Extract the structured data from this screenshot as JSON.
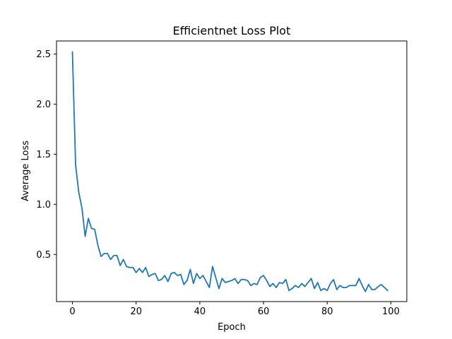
{
  "chart_data": {
    "type": "line",
    "title": "Efficientnet Loss Plot",
    "xlabel": "Epoch",
    "ylabel": "Average Loss",
    "xlim": [
      -5,
      105
    ],
    "ylim": [
      0.03,
      2.63
    ],
    "xticks": [
      0,
      20,
      40,
      60,
      80,
      100
    ],
    "yticks": [
      0.5,
      1.0,
      1.5,
      2.0,
      2.5
    ],
    "ytick_labels": [
      "0.5",
      "1.0",
      "1.5",
      "2.0",
      "2.5"
    ],
    "grid": false,
    "legend": "none",
    "color": "#1f77b4",
    "series": [
      {
        "x": [
          0,
          1,
          2,
          3,
          4,
          5,
          6,
          7,
          8,
          9,
          10,
          11,
          12,
          13,
          14,
          15,
          16,
          17,
          18,
          19,
          20,
          21,
          22,
          23,
          24,
          25,
          26,
          27,
          28,
          29,
          30,
          31,
          32,
          33,
          34,
          35,
          36,
          37,
          38,
          39,
          40,
          41,
          42,
          43,
          44,
          45,
          46,
          47,
          48,
          49,
          50,
          51,
          52,
          53,
          54,
          55,
          56,
          57,
          58,
          59,
          60,
          61,
          62,
          63,
          64,
          65,
          66,
          67,
          68,
          69,
          70,
          71,
          72,
          73,
          74,
          75,
          76,
          77,
          78,
          79,
          80,
          81,
          82,
          83,
          84,
          85,
          86,
          87,
          88,
          89,
          90,
          91,
          92,
          93,
          94,
          95,
          96,
          97,
          98,
          99
        ],
        "y": [
          2.52,
          1.39,
          1.12,
          0.96,
          0.68,
          0.86,
          0.76,
          0.75,
          0.59,
          0.48,
          0.51,
          0.51,
          0.45,
          0.49,
          0.49,
          0.39,
          0.45,
          0.38,
          0.37,
          0.37,
          0.32,
          0.36,
          0.32,
          0.37,
          0.28,
          0.3,
          0.31,
          0.24,
          0.25,
          0.29,
          0.23,
          0.31,
          0.32,
          0.29,
          0.3,
          0.2,
          0.24,
          0.35,
          0.21,
          0.31,
          0.26,
          0.29,
          0.23,
          0.17,
          0.38,
          0.27,
          0.16,
          0.26,
          0.22,
          0.23,
          0.24,
          0.26,
          0.21,
          0.25,
          0.25,
          0.24,
          0.19,
          0.21,
          0.2,
          0.27,
          0.29,
          0.24,
          0.18,
          0.21,
          0.17,
          0.22,
          0.21,
          0.25,
          0.14,
          0.16,
          0.19,
          0.17,
          0.21,
          0.18,
          0.22,
          0.26,
          0.16,
          0.22,
          0.14,
          0.16,
          0.14,
          0.21,
          0.25,
          0.15,
          0.19,
          0.17,
          0.17,
          0.19,
          0.19,
          0.19,
          0.26,
          0.19,
          0.13,
          0.2,
          0.15,
          0.15,
          0.18,
          0.2,
          0.17,
          0.14
        ]
      }
    ]
  }
}
